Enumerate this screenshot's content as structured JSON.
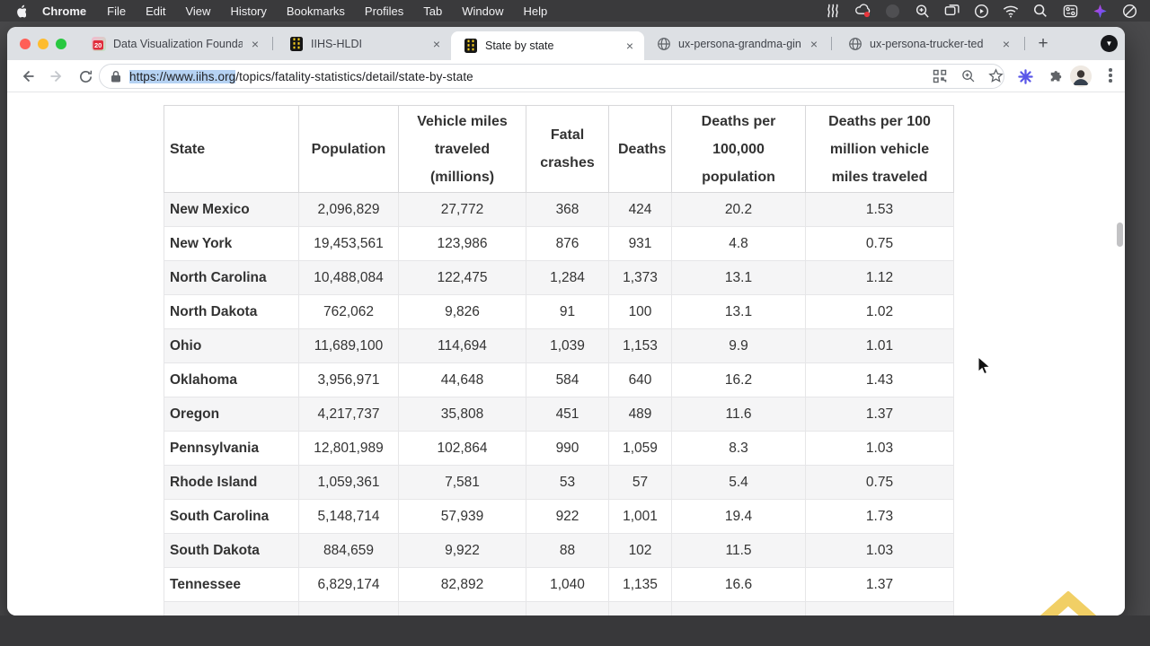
{
  "menubar": {
    "app_name": "Chrome",
    "items": [
      "File",
      "Edit",
      "View",
      "History",
      "Bookmarks",
      "Profiles",
      "Tab",
      "Window",
      "Help"
    ],
    "status_icons": [
      "waves-icon",
      "creative-cloud-icon",
      "dimmed-app-icon",
      "zoom-lens-icon",
      "displays-icon",
      "play-circle-icon",
      "wifi-icon",
      "spotlight-search-icon",
      "control-center-icon",
      "sparkle-icon",
      "focus-mode-icon"
    ]
  },
  "tabs": [
    {
      "title": "Data Visualization Founda",
      "icon": "calendar-20-icon",
      "active": false
    },
    {
      "title": "IIHS-HLDI",
      "icon": "iihs-road-icon",
      "active": false
    },
    {
      "title": "State by state",
      "icon": "iihs-road-icon",
      "active": true
    },
    {
      "title": "ux-persona-grandma-gin",
      "icon": "globe-icon",
      "active": false
    },
    {
      "title": "ux-persona-trucker-ted",
      "icon": "globe-icon",
      "active": false
    }
  ],
  "toolbar": {
    "url_selected": "https://www.iihs.org",
    "url_rest": "/topics/fatality-statistics/detail/state-by-state",
    "close_label": "×",
    "new_tab_label": "+"
  },
  "table": {
    "headers": [
      "State",
      "Population",
      "Vehicle miles traveled (millions)",
      "Fatal crashes",
      "Deaths",
      "Deaths per 100,000 population",
      "Deaths per 100 million vehicle miles traveled"
    ],
    "rows": [
      [
        "New Mexico",
        "2,096,829",
        "27,772",
        "368",
        "424",
        "20.2",
        "1.53"
      ],
      [
        "New York",
        "19,453,561",
        "123,986",
        "876",
        "931",
        "4.8",
        "0.75"
      ],
      [
        "North Carolina",
        "10,488,084",
        "122,475",
        "1,284",
        "1,373",
        "13.1",
        "1.12"
      ],
      [
        "North Dakota",
        "762,062",
        "9,826",
        "91",
        "100",
        "13.1",
        "1.02"
      ],
      [
        "Ohio",
        "11,689,100",
        "114,694",
        "1,039",
        "1,153",
        "9.9",
        "1.01"
      ],
      [
        "Oklahoma",
        "3,956,971",
        "44,648",
        "584",
        "640",
        "16.2",
        "1.43"
      ],
      [
        "Oregon",
        "4,217,737",
        "35,808",
        "451",
        "489",
        "11.6",
        "1.37"
      ],
      [
        "Pennsylvania",
        "12,801,989",
        "102,864",
        "990",
        "1,059",
        "8.3",
        "1.03"
      ],
      [
        "Rhode Island",
        "1,059,361",
        "7,581",
        "53",
        "57",
        "5.4",
        "0.75"
      ],
      [
        "South Carolina",
        "5,148,714",
        "57,939",
        "922",
        "1,001",
        "19.4",
        "1.73"
      ],
      [
        "South Dakota",
        "884,659",
        "9,922",
        "88",
        "102",
        "11.5",
        "1.03"
      ],
      [
        "Tennessee",
        "6,829,174",
        "82,892",
        "1,040",
        "1,135",
        "16.6",
        "1.37"
      ]
    ],
    "has_partial_next_row": true
  },
  "colors": {
    "menubar_bg": "#3a3a3c",
    "tabstrip_bg": "#dde0e4",
    "url_selection": "#b5d2f3",
    "row_alt": "#f5f5f6",
    "scrolltop_gold": "#eec33f",
    "iihs_yellow": "#ffd21e",
    "traffic_red": "#ff5f57",
    "traffic_yellow": "#febc2e",
    "traffic_green": "#28c840"
  }
}
